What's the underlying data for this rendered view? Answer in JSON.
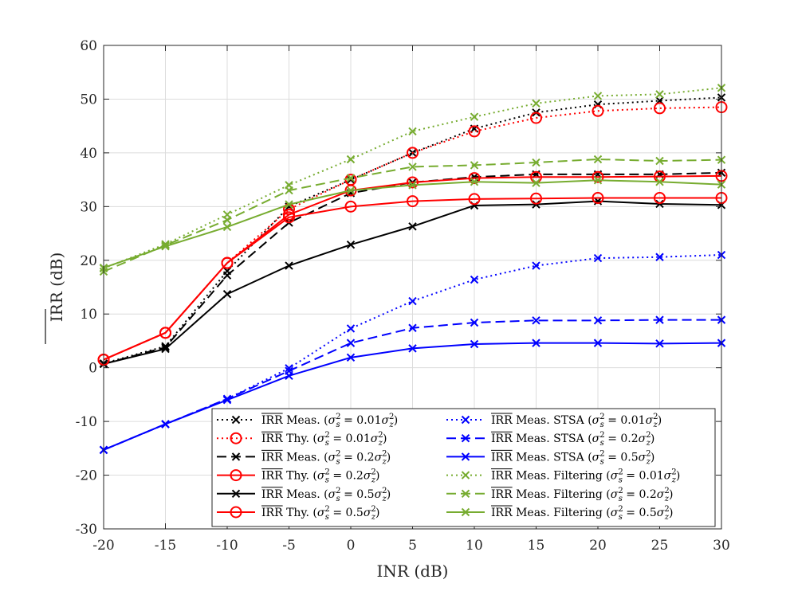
{
  "chart_data": {
    "type": "line",
    "xlabel": "INR (dB)",
    "ylabel": "IRR (dB)",
    "ylabel_overline": true,
    "xlim": [
      -20,
      30
    ],
    "ylim": [
      -30,
      60
    ],
    "xticks": [
      -20,
      -15,
      -10,
      -5,
      0,
      5,
      10,
      15,
      20,
      25,
      30
    ],
    "yticks": [
      -30,
      -20,
      -10,
      0,
      10,
      20,
      30,
      40,
      50,
      60
    ],
    "grid": true,
    "legend_position": "bottom-right",
    "x": [
      -20,
      -15,
      -10,
      -5,
      0,
      5,
      10,
      15,
      20,
      25,
      30
    ],
    "series": [
      {
        "name": "IRR Meas. (σs² = 0.01σz²)",
        "color": "#000000",
        "dash": "dotted",
        "marker": "x",
        "values": [
          0.8,
          4.0,
          18.0,
          30.0,
          35.0,
          40.0,
          44.5,
          47.5,
          49.0,
          49.7,
          50.3
        ]
      },
      {
        "name": "IRR Thy. (σs² = 0.01σz²)",
        "color": "#ff0000",
        "dash": "dotted",
        "marker": "o",
        "values": [
          1.5,
          6.5,
          19.5,
          29.5,
          35.0,
          40.0,
          44.0,
          46.5,
          47.8,
          48.3,
          48.5
        ]
      },
      {
        "name": "IRR Meas. (σs² = 0.2σz²)",
        "color": "#000000",
        "dash": "dashed",
        "marker": "x",
        "values": [
          0.7,
          3.8,
          17.2,
          27.0,
          32.5,
          34.5,
          35.5,
          36.0,
          36.0,
          36.0,
          36.3
        ]
      },
      {
        "name": "IRR Thy. (σs² = 0.2σz²)",
        "color": "#ff0000",
        "dash": "solid",
        "marker": "o",
        "values": [
          1.5,
          6.5,
          19.5,
          28.5,
          33.0,
          34.5,
          35.3,
          35.5,
          35.5,
          35.6,
          35.7
        ]
      },
      {
        "name": "IRR Meas. (σs² = 0.5σz²)",
        "color": "#000000",
        "dash": "solid",
        "marker": "x",
        "values": [
          0.7,
          3.5,
          13.7,
          19.0,
          22.9,
          26.3,
          30.2,
          30.4,
          31.0,
          30.5,
          30.3
        ]
      },
      {
        "name": "IRR Thy. (σs² = 0.5σz²)",
        "color": "#ff0000",
        "dash": "solid",
        "marker": "o",
        "values": [
          1.5,
          6.5,
          19.5,
          28.0,
          30.0,
          31.0,
          31.4,
          31.5,
          31.6,
          31.6,
          31.6
        ]
      },
      {
        "name": "IRR Meas. STSA (σs² = 0.01σz²)",
        "color": "#0000ff",
        "dash": "dotted",
        "marker": "x",
        "values": [
          -15.3,
          -10.5,
          -5.8,
          -0.1,
          7.3,
          12.4,
          16.4,
          19.0,
          20.4,
          20.6,
          21.0
        ]
      },
      {
        "name": "IRR Meas. STSA (σs² = 0.2σz²)",
        "color": "#0000ff",
        "dash": "dashed",
        "marker": "x",
        "values": [
          -15.3,
          -10.5,
          -5.8,
          -0.6,
          4.6,
          7.4,
          8.4,
          8.8,
          8.8,
          8.9,
          8.9
        ]
      },
      {
        "name": "IRR Meas. STSA (σs² = 0.5σz²)",
        "color": "#0000ff",
        "dash": "solid",
        "marker": "x",
        "values": [
          -15.3,
          -10.5,
          -6.0,
          -1.5,
          1.9,
          3.6,
          4.4,
          4.6,
          4.6,
          4.5,
          4.6
        ]
      },
      {
        "name": "IRR Meas. Filtering (σs² = 0.01σz²)",
        "color": "#77ac30",
        "dash": "dotted",
        "marker": "x",
        "values": [
          18.5,
          23.0,
          28.5,
          34.0,
          38.8,
          44.0,
          46.7,
          49.2,
          50.6,
          50.9,
          52.1
        ]
      },
      {
        "name": "IRR Meas. Filtering (σs² = 0.2σz²)",
        "color": "#77ac30",
        "dash": "dashed",
        "marker": "x",
        "values": [
          17.9,
          22.8,
          27.5,
          33.0,
          35.3,
          37.4,
          37.7,
          38.2,
          38.8,
          38.5,
          38.7
        ]
      },
      {
        "name": "IRR Meas. Filtering (σs² = 0.5σz²)",
        "color": "#77ac30",
        "dash": "solid",
        "marker": "x",
        "values": [
          18.6,
          22.6,
          26.2,
          30.4,
          33.0,
          34.0,
          34.6,
          34.4,
          34.9,
          34.6,
          34.1
        ]
      }
    ],
    "legend_columns": [
      [
        {
          "series": 0,
          "label": "IRR",
          "kind": "Meas.",
          "sigma": "0.01"
        },
        {
          "series": 1,
          "label": "IRR",
          "kind": "Thy.",
          "sigma": "0.01"
        },
        {
          "series": 2,
          "label": "IRR",
          "kind": "Meas.",
          "sigma": "0.2"
        },
        {
          "series": 3,
          "label": "IRR",
          "kind": "Thy.",
          "sigma": "0.2"
        },
        {
          "series": 4,
          "label": "IRR",
          "kind": "Meas.",
          "sigma": "0.5"
        },
        {
          "series": 5,
          "label": "IRR",
          "kind": "Thy.",
          "sigma": "0.5"
        }
      ],
      [
        {
          "series": 6,
          "label": "IRR",
          "kind": "Meas. STSA",
          "sigma": "0.01"
        },
        {
          "series": 7,
          "label": "IRR",
          "kind": "Meas. STSA",
          "sigma": "0.2"
        },
        {
          "series": 8,
          "label": "IRR",
          "kind": "Meas. STSA",
          "sigma": "0.5"
        },
        {
          "series": 9,
          "label": "IRR",
          "kind": "Meas. Filtering",
          "sigma": "0.01"
        },
        {
          "series": 10,
          "label": "IRR",
          "kind": "Meas. Filtering",
          "sigma": "0.2"
        },
        {
          "series": 11,
          "label": "IRR",
          "kind": "Meas. Filtering",
          "sigma": "0.5"
        }
      ]
    ]
  }
}
